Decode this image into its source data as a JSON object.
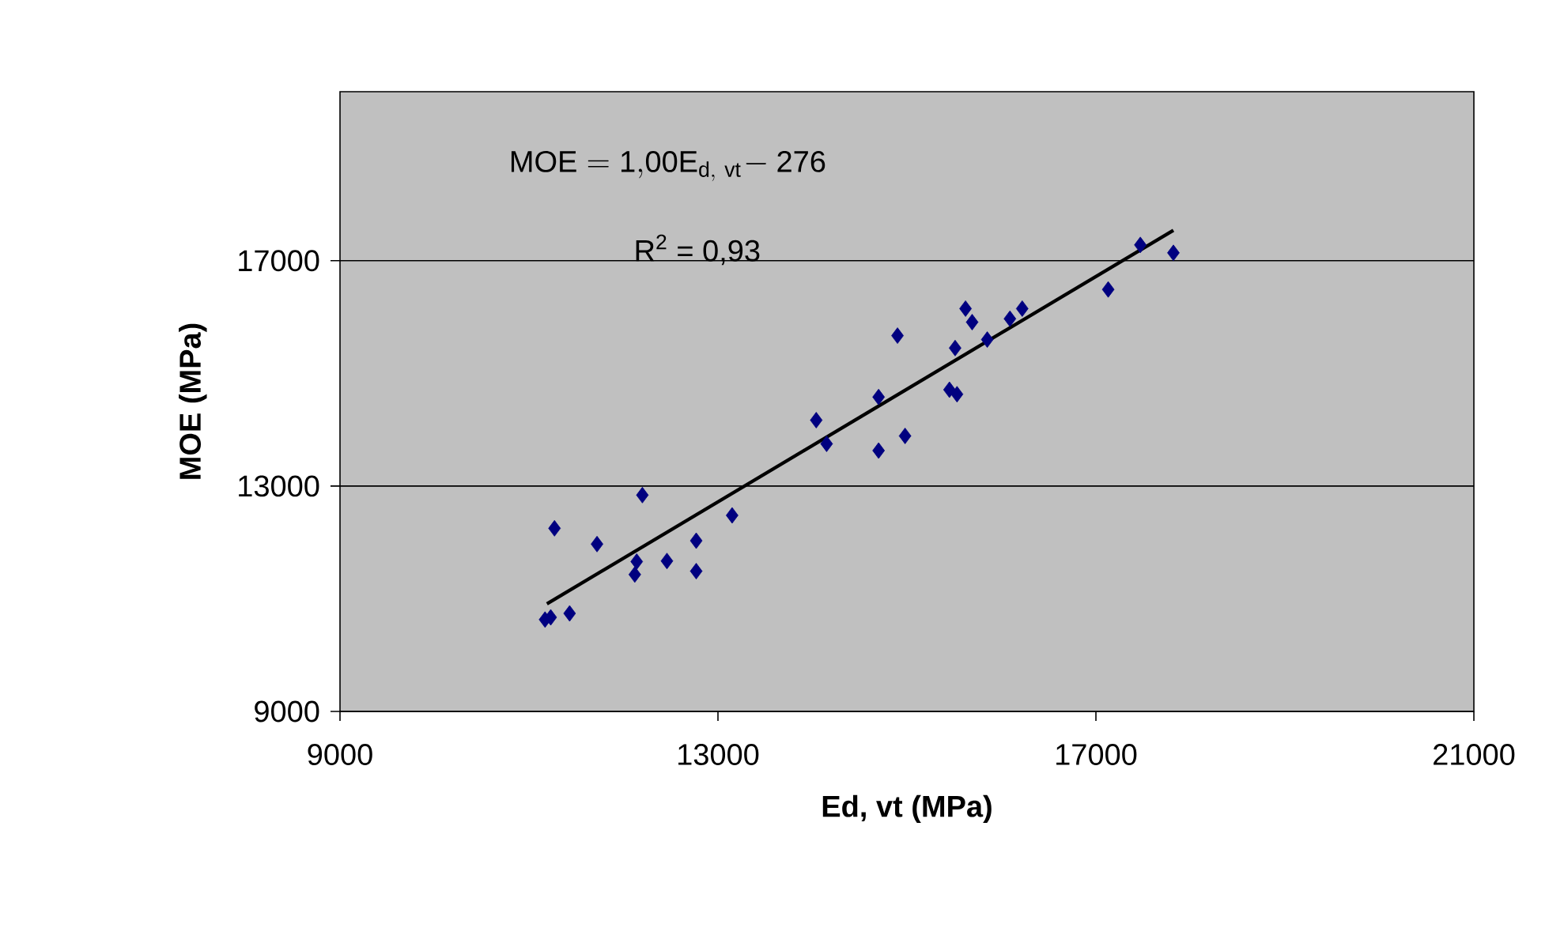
{
  "chart_data": {
    "type": "scatter",
    "xlabel": "Ed, vt (MPa)",
    "ylabel": "MOE (MPa)",
    "xlim": [
      9000,
      21000
    ],
    "ylim": [
      9000,
      20000
    ],
    "xticks": [
      9000,
      13000,
      17000,
      21000
    ],
    "yticks": [
      9000,
      13000,
      17000
    ],
    "grid": "y",
    "marker": "diamond",
    "annotations": [
      "\\mathrm{MOE = 1{,}00E_{d,\\ vt}\\!- 276}",
      "R$^{2}$ = 0,93"
    ],
    "series": [
      {
        "type": "scatter",
        "color": "#000080",
        "x": [
          11170,
          11230,
          11430,
          11270,
          11720,
          12140,
          12120,
          12200,
          12460,
          12770,
          12770,
          13150,
          14040,
          14150,
          14700,
          14700,
          14900,
          14980,
          15450,
          15530,
          15510,
          15620,
          15690,
          15850,
          16090,
          16220,
          17130,
          17470,
          17820
        ],
        "values": [
          10630,
          10670,
          10740,
          12250,
          11970,
          11660,
          11430,
          12840,
          11670,
          12030,
          11490,
          12480,
          14170,
          13750,
          14580,
          13630,
          15670,
          13890,
          14710,
          14630,
          15450,
          16150,
          15910,
          15600,
          15970,
          16150,
          16490,
          17280,
          17140
        ]
      },
      {
        "type": "line",
        "color": "#000000",
        "marker": "none",
        "x": [
          11190,
          17820
        ],
        "values": [
          10910,
          17540
        ]
      }
    ]
  }
}
